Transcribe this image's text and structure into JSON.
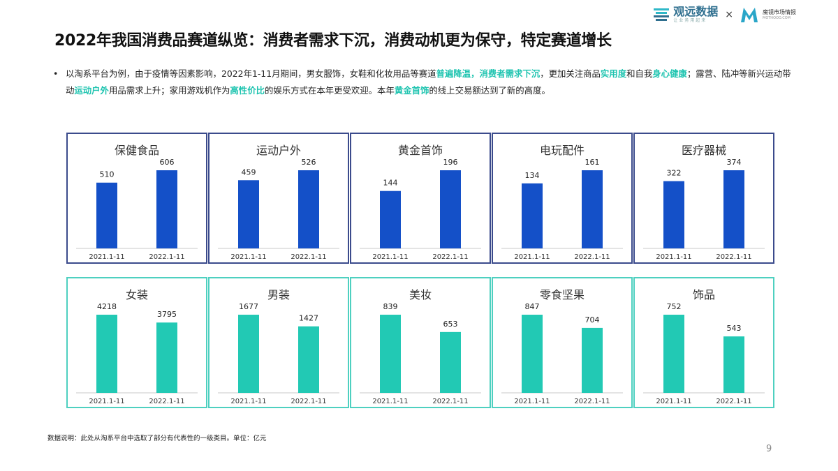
{
  "logo": {
    "brand1": "观远数据",
    "brand1_sub": "让业务用起来",
    "times": "×",
    "brand2": "魔镜市场情报",
    "brand2_sub": "MOTHOOO.COM"
  },
  "title": "2022年我国消费品赛道纵览：消费者需求下沉，消费动机更为保守，特定赛道增长",
  "bullet": {
    "dot": "•",
    "segments": [
      {
        "text": "以淘系平台为例，由于疫情等因素影响，2022年1-11月期间，男女服饰，女鞋和化妆用品等赛道",
        "hl": false
      },
      {
        "text": "普遍降温，消费者需求下沉",
        "hl": true
      },
      {
        "text": "，更加关注商品",
        "hl": false
      },
      {
        "text": "实用度",
        "hl": true
      },
      {
        "text": "和自我",
        "hl": false
      },
      {
        "text": "身心健康",
        "hl": true
      },
      {
        "text": "；露营、陆冲等新兴运动带动",
        "hl": false
      },
      {
        "text": "运动户外",
        "hl": true
      },
      {
        "text": "用品需求上升；家用游戏机作为",
        "hl": false
      },
      {
        "text": "高性价比",
        "hl": true
      },
      {
        "text": "的娱乐方式在本年更受欢迎。本年",
        "hl": false
      },
      {
        "text": "黄金首饰",
        "hl": true
      },
      {
        "text": "的线上交易额达到了新的高度。",
        "hl": false
      }
    ]
  },
  "colors": {
    "blue_bar": "#1450c8",
    "teal_bar": "#22c9b4",
    "blue_border": "#3b4b8c",
    "teal_border": "#4ed0c0",
    "highlight": "#1fc4b0"
  },
  "chart_data": [
    {
      "type": "bar",
      "title": "保健食品",
      "categories": [
        "2021.1-11",
        "2022.1-11"
      ],
      "values": [
        510,
        606
      ],
      "group": "blue"
    },
    {
      "type": "bar",
      "title": "运动户外",
      "categories": [
        "2021.1-11",
        "2022.1-11"
      ],
      "values": [
        459,
        526
      ],
      "group": "blue"
    },
    {
      "type": "bar",
      "title": "黄金首饰",
      "categories": [
        "2021.1-11",
        "2022.1-11"
      ],
      "values": [
        144,
        196
      ],
      "group": "blue"
    },
    {
      "type": "bar",
      "title": "电玩配件",
      "categories": [
        "2021.1-11",
        "2022.1-11"
      ],
      "values": [
        134,
        161
      ],
      "group": "blue"
    },
    {
      "type": "bar",
      "title": "医疗器械",
      "categories": [
        "2021.1-11",
        "2022.1-11"
      ],
      "values": [
        322,
        374
      ],
      "group": "blue"
    },
    {
      "type": "bar",
      "title": "女装",
      "categories": [
        "2021.1-11",
        "2022.1-11"
      ],
      "values": [
        4218,
        3795
      ],
      "group": "teal"
    },
    {
      "type": "bar",
      "title": "男装",
      "categories": [
        "2021.1-11",
        "2022.1-11"
      ],
      "values": [
        1677,
        1427
      ],
      "group": "teal"
    },
    {
      "type": "bar",
      "title": "美妆",
      "categories": [
        "2021.1-11",
        "2022.1-11"
      ],
      "values": [
        839,
        653
      ],
      "group": "teal"
    },
    {
      "type": "bar",
      "title": "零食坚果",
      "categories": [
        "2021.1-11",
        "2022.1-11"
      ],
      "values": [
        847,
        704
      ],
      "group": "teal"
    },
    {
      "type": "bar",
      "title": "饰品",
      "categories": [
        "2021.1-11",
        "2022.1-11"
      ],
      "values": [
        752,
        543
      ],
      "group": "teal"
    }
  ],
  "footnote": "数据说明：此处从淘系平台中选取了部分有代表性的一级类目。单位：亿元",
  "page_number": "9"
}
